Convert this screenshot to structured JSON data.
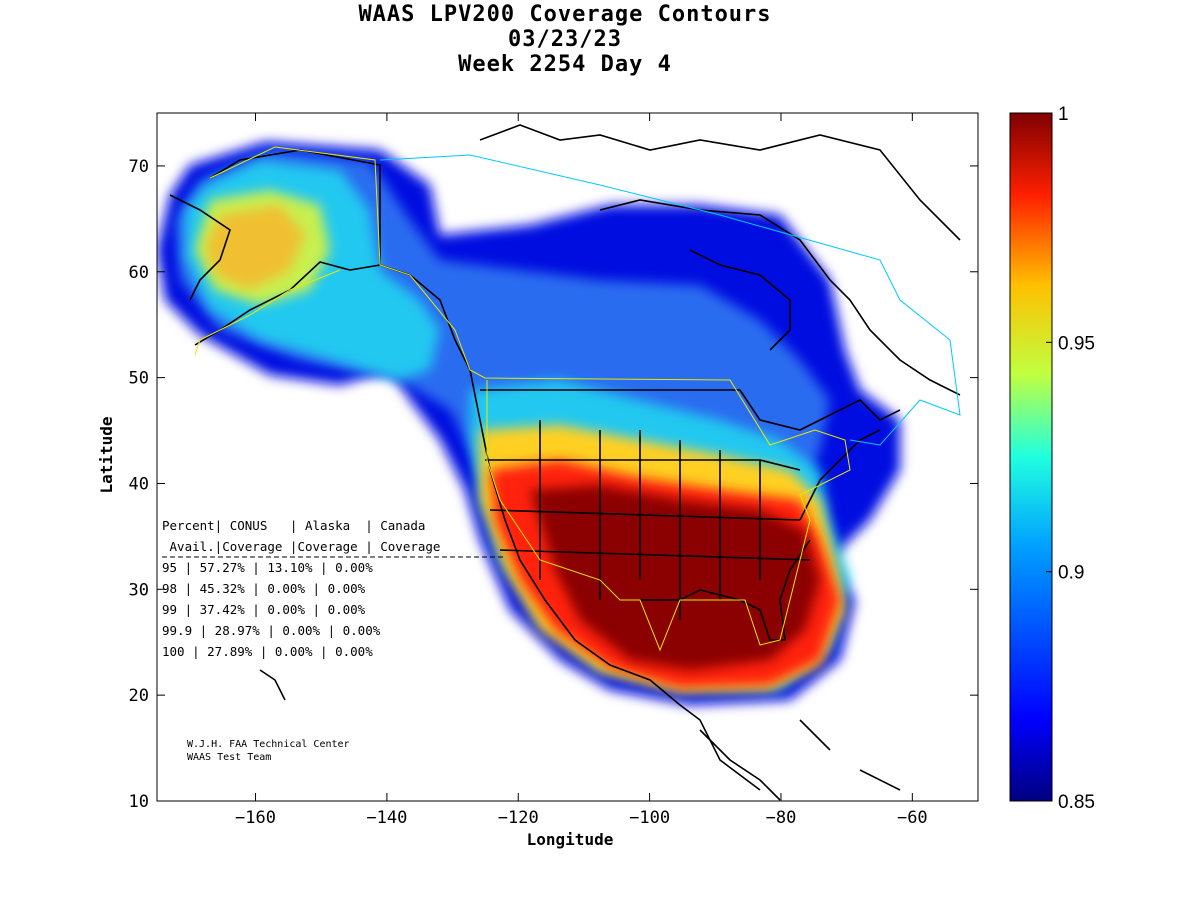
{
  "title": {
    "line1": "WAAS LPV200 Coverage Contours",
    "line2": "03/23/23",
    "line3": "Week 2254 Day 4"
  },
  "axes": {
    "xlabel": "Longitude",
    "ylabel": "Latitude",
    "xlim": [
      -175,
      -50
    ],
    "ylim": [
      10,
      75
    ],
    "xticks": [
      -160,
      -140,
      -120,
      -100,
      -80,
      -60
    ],
    "yticks": [
      10,
      20,
      30,
      40,
      50,
      60,
      70
    ]
  },
  "colorbar": {
    "min": 0.85,
    "max": 1,
    "ticks": [
      "1",
      "0.95",
      "0.9",
      "0.85"
    ],
    "tick_values": [
      1,
      0.95,
      0.9,
      0.85
    ],
    "colormap": "jet"
  },
  "stats_table": {
    "header1": "Percent| CONUS   | Alaska  | Canada",
    "header2": " Avail.|Coverage |Coverage | Coverage",
    "rows": [
      {
        "avail": "95",
        "conus": "57.27%",
        "alaska": "13.10%",
        "canada": "0.00%"
      },
      {
        "avail": "98",
        "conus": "45.32%",
        "alaska": "0.00%",
        "canada": "0.00%"
      },
      {
        "avail": "99",
        "conus": "37.42%",
        "alaska": "0.00%",
        "canada": "0.00%"
      },
      {
        "avail": "99.9",
        "conus": "28.97%",
        "alaska": "0.00%",
        "canada": "0.00%"
      },
      {
        "avail": "100",
        "conus": "27.89%",
        "alaska": "0.00%",
        "canada": "0.00%"
      }
    ]
  },
  "credit": {
    "line1": "W.J.H. FAA Technical Center",
    "line2": "WAAS Test Team"
  },
  "colors": {
    "red_core": "#8b0000",
    "red": "#e00000",
    "orange": "#ff8000",
    "yellow": "#ffe000",
    "cyan": "#00d0ff",
    "blue": "#0050ff",
    "navy": "#0000a0",
    "coastline": "#000000",
    "service_boundary_conus": "#e8e800",
    "service_boundary_canada": "#00c8ff"
  },
  "chart_data": {
    "type": "heatmap",
    "title": "WAAS LPV200 Coverage Contours",
    "xlabel": "Longitude",
    "ylabel": "Latitude",
    "xlim": [
      -175,
      -50
    ],
    "ylim": [
      10,
      75
    ],
    "zlim": [
      0.85,
      1
    ],
    "regions": [
      {
        "name": "CONUS",
        "availability_95": "57.27%",
        "availability_98": "45.32%",
        "availability_99": "37.42%",
        "availability_99_9": "28.97%",
        "availability_100": "27.89%"
      },
      {
        "name": "Alaska",
        "availability_95": "13.10%",
        "availability_98": "0.00%",
        "availability_99": "0.00%",
        "availability_99_9": "0.00%",
        "availability_100": "0.00%"
      },
      {
        "name": "Canada",
        "availability_95": "0.00%",
        "availability_98": "0.00%",
        "availability_99": "0.00%",
        "availability_99_9": "0.00%",
        "availability_100": "0.00%"
      }
    ]
  }
}
